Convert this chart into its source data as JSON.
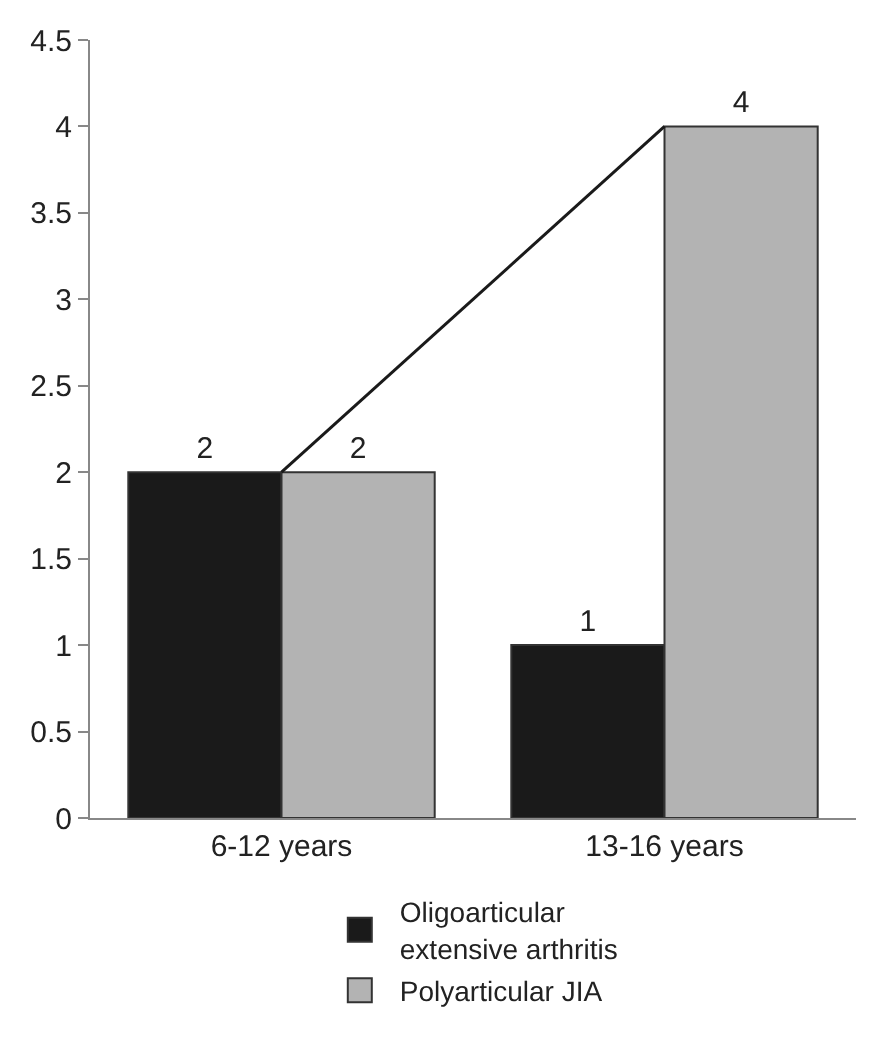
{
  "chart_data": {
    "type": "bar",
    "categories": [
      "6-12 years",
      "13-16 years"
    ],
    "series": [
      {
        "name": "Oligoarticular extensive arthritis",
        "color": "#1a1a1a",
        "values": [
          2,
          1
        ],
        "value_labels": [
          "2",
          "1"
        ]
      },
      {
        "name": "Polyarticular JIA",
        "color": "#b3b3b3",
        "values": [
          2,
          4
        ],
        "value_labels": [
          "2",
          "4"
        ]
      },
      {
        "type": "line",
        "color": "#1a1a1a",
        "values": [
          2,
          4
        ]
      }
    ],
    "ylim": [
      0,
      4.5
    ],
    "yticks": [
      0,
      0.5,
      1,
      1.5,
      2,
      2.5,
      3,
      3.5,
      4,
      4.5
    ],
    "legend": "bottom"
  }
}
